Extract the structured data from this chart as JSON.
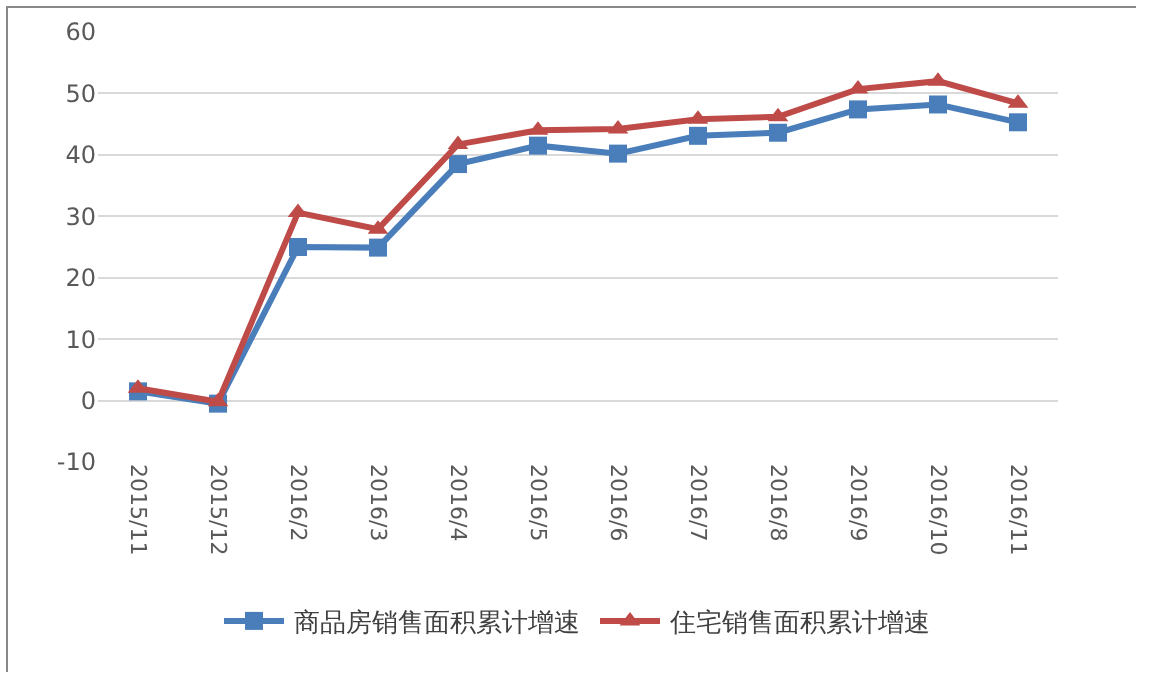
{
  "chart_data": {
    "type": "line",
    "categories": [
      "2015/11",
      "2015/12",
      "2016/2",
      "2016/3",
      "2016/4",
      "2016/5",
      "2016/6",
      "2016/7",
      "2016/8",
      "2016/9",
      "2016/10",
      "2016/11"
    ],
    "series": [
      {
        "name": "商品房销售面积累计增速",
        "color": "#4a7ebb",
        "marker": "square",
        "values": [
          1.5,
          -0.5,
          25,
          24.9,
          38.5,
          41.5,
          40.2,
          43.1,
          43.6,
          47.4,
          48.2,
          45.3
        ]
      },
      {
        "name": "住宅销售面积累计增速",
        "color": "#be4b48",
        "marker": "triangle",
        "values": [
          2,
          -0.2,
          30.6,
          27.9,
          41.7,
          44,
          44.2,
          45.8,
          46.2,
          50.7,
          52,
          48.4
        ]
      }
    ],
    "ylim": [
      -10,
      60
    ],
    "yticks": [
      -10,
      0,
      10,
      20,
      30,
      40,
      50,
      60
    ],
    "grid": "y",
    "legend": "bottom",
    "line_style": "solid"
  }
}
